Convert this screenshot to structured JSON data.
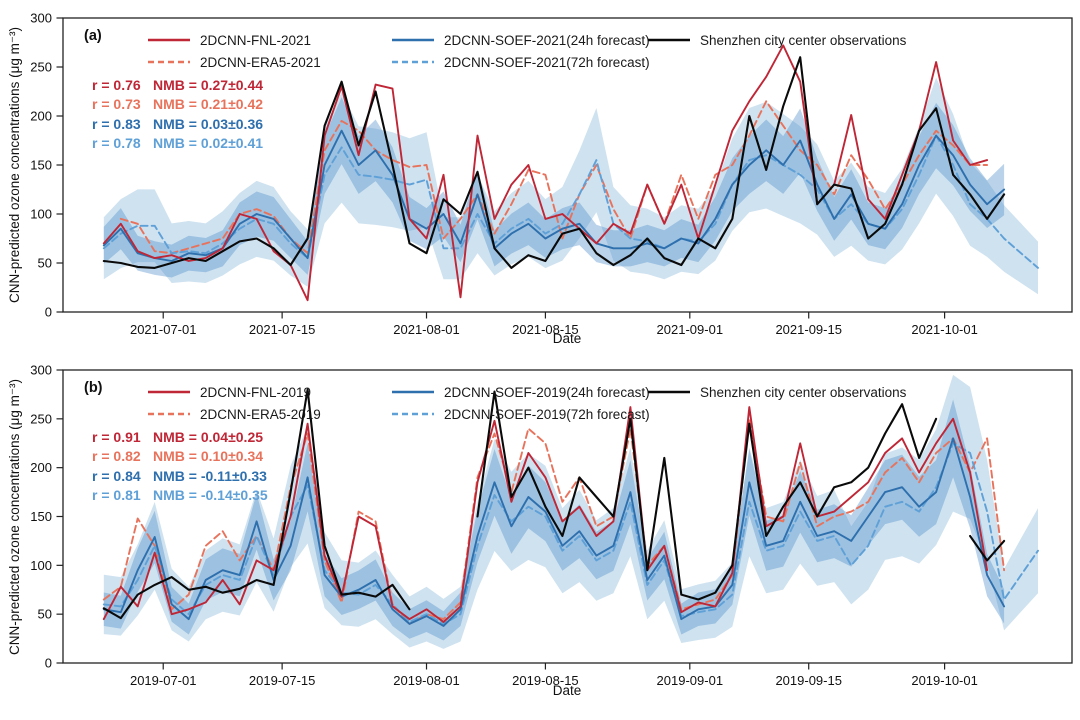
{
  "chart_data": {
    "type": "line",
    "xlabel": "Date",
    "ylabel": "CNN-predicted ozone concentrations (μg m⁻³)",
    "y_ticks": [
      0,
      50,
      100,
      150,
      200,
      250,
      300
    ],
    "y_domain": [
      0,
      300
    ],
    "x_domain": [
      -11.8,
      107
    ],
    "x_tick_offsets": [
      0,
      14,
      31,
      45,
      62,
      76,
      92
    ],
    "x_offsets": [
      -7,
      -5,
      -3,
      -1,
      1,
      3,
      5,
      7,
      9,
      11,
      13,
      15,
      17,
      19,
      21,
      23,
      25,
      27,
      29,
      31,
      33,
      35,
      37,
      39,
      41,
      43,
      45,
      47,
      49,
      51,
      53,
      55,
      57,
      59,
      61,
      63,
      65,
      67,
      69,
      71,
      73,
      75,
      77,
      79,
      81,
      83,
      85,
      87,
      89,
      91,
      93,
      95,
      97,
      99,
      101,
      103
    ],
    "x_dates_mmdd": [
      "06-24",
      "06-26",
      "06-28",
      "06-30",
      "07-02",
      "07-04",
      "07-06",
      "07-08",
      "07-10",
      "07-12",
      "07-14",
      "07-16",
      "07-18",
      "07-20",
      "07-22",
      "07-24",
      "07-26",
      "07-28",
      "07-30",
      "08-01",
      "08-03",
      "08-05",
      "08-07",
      "08-09",
      "08-11",
      "08-13",
      "08-15",
      "08-17",
      "08-19",
      "08-21",
      "08-23",
      "08-25",
      "08-27",
      "08-29",
      "08-31",
      "09-02",
      "09-04",
      "09-06",
      "09-08",
      "09-10",
      "09-12",
      "09-14",
      "09-16",
      "09-18",
      "09-20",
      "09-22",
      "09-24",
      "09-26",
      "09-28",
      "09-30",
      "10-02",
      "10-04",
      "10-06",
      "10-08",
      "10-10",
      "10-12"
    ],
    "uncertainty_bands": [
      {
        "basis": "soef72",
        "half_width": {
          "base": 16,
          "frac": 0.24
        },
        "color": "#a8cbe4",
        "opacity": 0.55
      },
      {
        "basis": "soef24",
        "half_width": {
          "base": 10,
          "frac": 0.13
        },
        "color": "#4a8cc7",
        "opacity": 0.38
      }
    ],
    "panels": [
      {
        "tag": "(a)",
        "year": "2021",
        "x_tick_labels": [
          "2021-07-01",
          "2021-07-15",
          "2021-08-01",
          "2021-08-15",
          "2021-09-01",
          "2021-09-15",
          "2021-10-01"
        ],
        "stats": [
          {
            "r": "r = 0.76",
            "nmb": "NMB = 0.27±0.44",
            "color": "#bf2636"
          },
          {
            "r": "r = 0.73",
            "nmb": "NMB = 0.21±0.42",
            "color": "#e8735c"
          },
          {
            "r": "r = 0.83",
            "nmb": "NMB = 0.03±0.36",
            "color": "#2e6fad"
          },
          {
            "r": "r = 0.78",
            "nmb": "NMB = 0.02±0.41",
            "color": "#5fa0d7"
          }
        ],
        "series": [
          {
            "id": "fnl",
            "label": "2DCNN-FNL-2021",
            "color": "#bf2636",
            "dash": false,
            "width": 1.9,
            "values": [
              70,
              90,
              62,
              55,
              58,
              52,
              55,
              65,
              100,
              95,
              62,
              48,
              12,
              180,
              230,
              160,
              232,
              228,
              95,
              75,
              140,
              15,
              180,
              95,
              130,
              150,
              95,
              100,
              85,
              70,
              90,
              80,
              130,
              90,
              130,
              75,
              130,
              185,
              215,
              240,
              272,
              235,
              110,
              130,
              201,
              115,
              95,
              140,
              185,
              255,
              175,
              150,
              155,
              null,
              null,
              null
            ]
          },
          {
            "id": "era5",
            "label": "2DCNN-ERA5-2021",
            "color": "#e8735c",
            "dash": true,
            "width": 1.9,
            "values": [
              null,
              95,
              90,
              62,
              60,
              65,
              70,
              75,
              100,
              105,
              98,
              75,
              60,
              165,
              195,
              185,
              165,
              155,
              148,
              150,
              75,
              95,
              120,
              80,
              110,
              145,
              140,
              75,
              120,
              150,
              105,
              75,
              130,
              90,
              140,
              95,
              140,
              150,
              180,
              215,
              190,
              165,
              150,
              120,
              160,
              135,
              105,
              130,
              160,
              185,
              170,
              150,
              150,
              null,
              null,
              null
            ]
          },
          {
            "id": "soef24",
            "label": "2DCNN-SOEF-2021(24h forecast)",
            "color": "#2e6fad",
            "dash": false,
            "width": 1.9,
            "values": [
              68,
              85,
              60,
              55,
              52,
              60,
              58,
              65,
              90,
              100,
              95,
              75,
              55,
              150,
              185,
              150,
              165,
              140,
              95,
              85,
              100,
              70,
              120,
              65,
              80,
              90,
              75,
              85,
              90,
              70,
              65,
              65,
              70,
              65,
              75,
              70,
              95,
              130,
              150,
              165,
              150,
              175,
              130,
              95,
              120,
              90,
              85,
              110,
              150,
              180,
              160,
              130,
              110,
              125,
              null,
              null
            ]
          },
          {
            "id": "soef72",
            "label": "2DCNN-SOEF-2021(72h forecast)",
            "color": "#5fa0d7",
            "dash": true,
            "width": 1.9,
            "values": [
              65,
              80,
              88,
              88,
              60,
              62,
              60,
              70,
              85,
              95,
              90,
              70,
              55,
              140,
              168,
              140,
              138,
              135,
              130,
              135,
              65,
              65,
              100,
              70,
              85,
              95,
              80,
              90,
              120,
              155,
              90,
              75,
              72,
              65,
              75,
              72,
              90,
              130,
              155,
              160,
              150,
              140,
              125,
              95,
              110,
              90,
              85,
              105,
              140,
              180,
              150,
              110,
              95,
              75,
              60,
              45
            ]
          },
          {
            "id": "obs",
            "label": "Shenzhen city center observations",
            "color": "#0a0a0a",
            "dash": false,
            "width": 2.1,
            "values": [
              52,
              50,
              46,
              45,
              50,
              55,
              52,
              62,
              72,
              75,
              65,
              48,
              75,
              190,
              235,
              170,
              225,
              150,
              70,
              60,
              115,
              100,
              143,
              65,
              45,
              58,
              52,
              80,
              85,
              60,
              48,
              58,
              75,
              55,
              48,
              75,
              65,
              95,
              200,
              145,
              210,
              260,
              110,
              130,
              126,
              75,
              90,
              130,
              185,
              208,
              140,
              120,
              95,
              120,
              null,
              null
            ]
          }
        ]
      },
      {
        "tag": "(b)",
        "year": "2019",
        "x_tick_labels": [
          "2019-07-01",
          "2019-07-15",
          "2019-08-01",
          "2019-08-15",
          "2019-09-01",
          "2019-09-15",
          "2019-10-01"
        ],
        "stats": [
          {
            "r": "r = 0.91",
            "nmb": "NMB = 0.04±0.25",
            "color": "#bf2636"
          },
          {
            "r": "r = 0.82",
            "nmb": "NMB = 0.10±0.34",
            "color": "#e8735c"
          },
          {
            "r": "r = 0.84",
            "nmb": "NMB = -0.11±0.33",
            "color": "#2e6fad"
          },
          {
            "r": "r = 0.81",
            "nmb": "NMB = -0.14±0.35",
            "color": "#5fa0d7"
          }
        ],
        "series": [
          {
            "id": "fnl",
            "label": "2DCNN-FNL-2019",
            "color": "#bf2636",
            "dash": false,
            "width": 1.9,
            "values": [
              45,
              78,
              58,
              113,
              50,
              55,
              62,
              85,
              60,
              105,
              95,
              150,
              245,
              110,
              68,
              150,
              140,
              58,
              45,
              55,
              42,
              58,
              185,
              248,
              165,
              215,
              190,
              145,
              160,
              130,
              145,
              262,
              95,
              120,
              52,
              62,
              58,
              92,
              262,
              140,
              150,
              225,
              150,
              155,
              170,
              185,
              215,
              230,
              195,
              225,
              250,
              195,
              95,
              null,
              null,
              null
            ]
          },
          {
            "id": "era5",
            "label": "2DCNN-ERA5-2019",
            "color": "#e8735c",
            "dash": true,
            "width": 1.9,
            "values": [
              65,
              78,
              148,
              120,
              55,
              70,
              120,
              135,
              105,
              130,
              95,
              180,
              235,
              105,
              62,
              155,
              145,
              60,
              40,
              50,
              45,
              62,
              190,
              235,
              175,
              240,
              225,
              165,
              190,
              140,
              150,
              240,
              100,
              120,
              55,
              60,
              65,
              90,
              250,
              150,
              145,
              205,
              140,
              150,
              155,
              165,
              195,
              210,
              185,
              215,
              230,
              195,
              230,
              95,
              null,
              null
            ]
          },
          {
            "id": "soef24",
            "label": "2DCNN-SOEF-2019(24h forecast)",
            "color": "#2e6fad",
            "dash": false,
            "width": 1.9,
            "values": [
              55,
              52,
              95,
              129,
              60,
              45,
              85,
              95,
              90,
              145,
              85,
              120,
              190,
              90,
              68,
              75,
              85,
              55,
              40,
              48,
              38,
              55,
              130,
              185,
              140,
              170,
              155,
              120,
              135,
              110,
              120,
              175,
              85,
              110,
              45,
              55,
              58,
              80,
              185,
              120,
              125,
              165,
              130,
              135,
              125,
              150,
              175,
              180,
              160,
              175,
              230,
              170,
              90,
              58,
              null,
              null
            ]
          },
          {
            "id": "soef72",
            "label": "2DCNN-SOEF-2019(72h forecast)",
            "color": "#5fa0d7",
            "dash": true,
            "width": 1.9,
            "values": [
              60,
              58,
              85,
              120,
              65,
              50,
              80,
              90,
              85,
              130,
              90,
              150,
              182,
              95,
              72,
              70,
              80,
              60,
              42,
              50,
              40,
              50,
              120,
              172,
              145,
              160,
              150,
              115,
              130,
              105,
              115,
              165,
              80,
              105,
              48,
              52,
              55,
              70,
              165,
              115,
              120,
              155,
              125,
              130,
              100,
              120,
              160,
              165,
              155,
              180,
              225,
              215,
              155,
              65,
              90,
              115
            ]
          },
          {
            "id": "obs",
            "label": "Shenzhen city center observations",
            "color": "#0a0a0a",
            "dash": false,
            "width": 2.1,
            "values": [
              56,
              46,
              70,
              80,
              88,
              75,
              78,
              72,
              76,
              85,
              80,
              175,
              280,
              120,
              70,
              72,
              68,
              80,
              55,
              null,
              null,
              null,
              150,
              278,
              170,
              200,
              160,
              130,
              190,
              170,
              150,
              250,
              95,
              210,
              70,
              65,
              72,
              100,
              245,
              130,
              160,
              185,
              150,
              180,
              185,
              200,
              235,
              265,
              210,
              250,
              null,
              130,
              105,
              125,
              null,
              null
            ]
          }
        ]
      }
    ]
  }
}
